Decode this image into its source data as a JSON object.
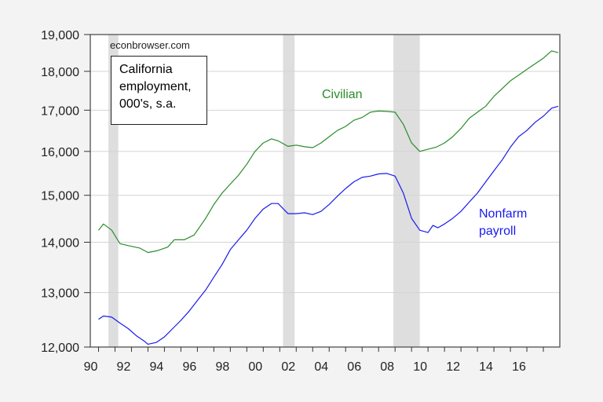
{
  "chart_data": {
    "type": "line",
    "title": "California employment, 000's, s.a.",
    "source": "econbrowser.com",
    "xlabel": "",
    "ylabel": "",
    "yscale": "log",
    "ylim": [
      12000,
      19000
    ],
    "xlim": [
      1989.5,
      2018.0
    ],
    "y_ticks": [
      "12,000",
      "13,000",
      "14,000",
      "15,000",
      "16,000",
      "17,000",
      "18,000",
      "19,000"
    ],
    "x_ticks": [
      "90",
      "92",
      "94",
      "96",
      "98",
      "00",
      "02",
      "04",
      "06",
      "08",
      "10",
      "12",
      "14",
      "16"
    ],
    "grid": true,
    "recessions": [
      [
        1990.6,
        1991.2
      ],
      [
        2001.2,
        2001.9
      ],
      [
        2007.9,
        2009.5
      ]
    ],
    "series": [
      {
        "name": "Civilian",
        "color": "#2a8c2a",
        "x": [
          1990.0,
          1990.3,
          1990.8,
          1991.3,
          1991.8,
          1992.5,
          1993.0,
          1993.6,
          1994.2,
          1994.6,
          1995.2,
          1995.8,
          1996.5,
          1997.0,
          1997.5,
          1998.0,
          1998.5,
          1999.0,
          1999.5,
          2000.0,
          2000.5,
          2000.9,
          2001.5,
          2002.0,
          2002.5,
          2003.0,
          2003.5,
          2004.0,
          2004.5,
          2005.0,
          2005.5,
          2006.0,
          2006.5,
          2007.0,
          2007.5,
          2008.0,
          2008.5,
          2009.0,
          2009.5,
          2010.0,
          2010.5,
          2011.0,
          2011.5,
          2012.0,
          2012.5,
          2013.0,
          2013.5,
          2014.0,
          2014.5,
          2015.0,
          2015.5,
          2016.0,
          2016.5,
          2017.0,
          2017.5,
          2017.9
        ],
        "values": [
          14250,
          14380,
          14250,
          13970,
          13930,
          13880,
          13790,
          13830,
          13900,
          14050,
          14050,
          14150,
          14500,
          14800,
          15050,
          15250,
          15450,
          15700,
          16000,
          16200,
          16300,
          16250,
          16120,
          16150,
          16110,
          16090,
          16200,
          16350,
          16500,
          16600,
          16750,
          16820,
          16950,
          16980,
          16970,
          16950,
          16650,
          16200,
          16000,
          16050,
          16100,
          16200,
          16350,
          16550,
          16800,
          16950,
          17100,
          17350,
          17550,
          17750,
          17900,
          18050,
          18200,
          18350,
          18550,
          18500
        ]
      },
      {
        "name": "Nonfarm payroll",
        "color": "#1a1aee",
        "x": [
          1990.0,
          1990.3,
          1990.8,
          1991.3,
          1991.8,
          1992.3,
          1992.8,
          1993.0,
          1993.5,
          1994.0,
          1994.5,
          1995.0,
          1995.5,
          1996.0,
          1996.5,
          1997.0,
          1997.5,
          1998.0,
          1998.5,
          1999.0,
          1999.5,
          2000.0,
          2000.5,
          2000.9,
          2001.5,
          2002.0,
          2002.5,
          2003.0,
          2003.5,
          2004.0,
          2004.5,
          2005.0,
          2005.5,
          2006.0,
          2006.5,
          2007.0,
          2007.5,
          2008.0,
          2008.5,
          2009.0,
          2009.5,
          2010.0,
          2010.3,
          2010.6,
          2011.0,
          2011.5,
          2012.0,
          2012.5,
          2013.0,
          2013.5,
          2014.0,
          2014.5,
          2015.0,
          2015.5,
          2016.0,
          2016.5,
          2017.0,
          2017.5,
          2017.9
        ],
        "values": [
          12500,
          12560,
          12540,
          12430,
          12330,
          12200,
          12100,
          12050,
          12080,
          12180,
          12330,
          12480,
          12650,
          12850,
          13050,
          13300,
          13550,
          13850,
          14050,
          14250,
          14500,
          14700,
          14820,
          14820,
          14600,
          14600,
          14620,
          14580,
          14650,
          14800,
          14980,
          15150,
          15300,
          15400,
          15430,
          15480,
          15490,
          15430,
          15050,
          14500,
          14250,
          14200,
          14350,
          14300,
          14380,
          14500,
          14650,
          14850,
          15050,
          15300,
          15550,
          15800,
          16100,
          16350,
          16500,
          16700,
          16850,
          17050,
          17100
        ]
      }
    ]
  },
  "annotations": {
    "source": "econbrowser.com",
    "title_lines": [
      "California",
      "employment,",
      "000's, s.a."
    ],
    "civilian_label": "Civilian",
    "nonfarm_label_lines": [
      "Nonfarm",
      "payroll"
    ]
  }
}
